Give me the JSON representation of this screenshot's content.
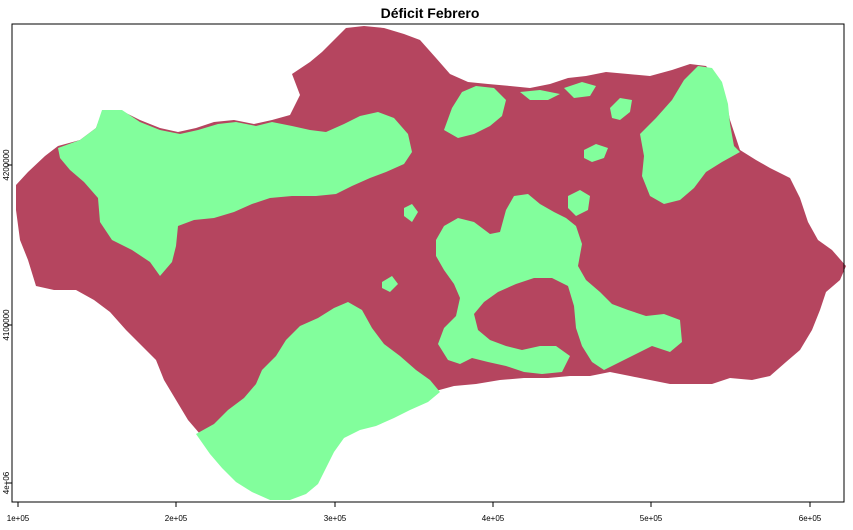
{
  "title": "Déficit Febrero",
  "colors": {
    "deficit_region": "#b5455f",
    "no_deficit_region": "#82fe9c",
    "background": "#ffffff"
  },
  "x_axis": {
    "ticks": [
      "1e+05",
      "2e+05",
      "3e+05",
      "4e+05",
      "5e+05",
      "6e+05"
    ]
  },
  "y_axis": {
    "ticks": [
      "4e+06",
      "4100000",
      "4200000"
    ]
  }
}
